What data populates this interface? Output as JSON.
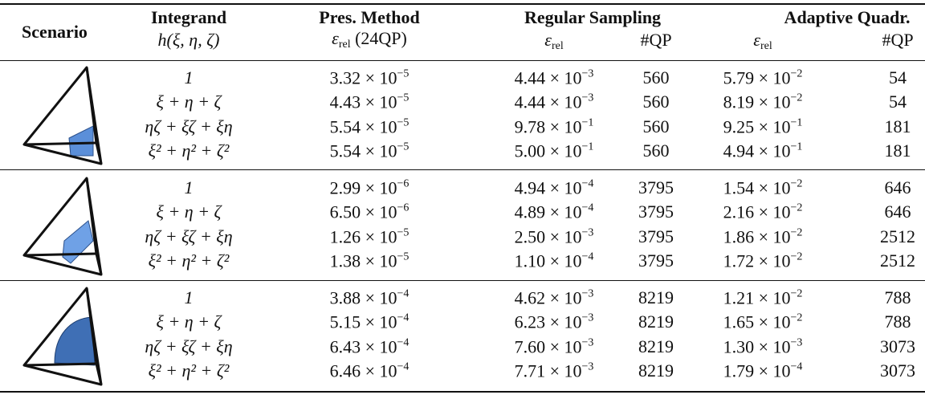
{
  "header": {
    "scenario": "Scenario",
    "integrand": {
      "title": "Integrand",
      "formula": "h(ξ, η, ζ)"
    },
    "pres": {
      "title": "Pres. Method",
      "symbol": "ε",
      "subscript": "rel",
      "note": "(24QP)"
    },
    "regular": {
      "title": "Regular Sampling",
      "symbol": "ε",
      "subscript": "rel",
      "qp": "#QP"
    },
    "adaptive": {
      "title": "Adaptive Quadr.",
      "symbol": "ε",
      "subscript": "rel",
      "qp": "#QP"
    }
  },
  "table": {
    "groups": [
      {
        "rows": [
          [
            "1",
            {
              "mantissa": "3.32 × 10",
              "exponent": "−5"
            },
            {
              "mantissa": "4.44 × 10",
              "exponent": "−3"
            },
            "560",
            {
              "mantissa": "5.79 × 10",
              "exponent": "−2"
            },
            "54"
          ],
          [
            "ξ + η + ζ",
            {
              "mantissa": "4.43 × 10",
              "exponent": "−5"
            },
            {
              "mantissa": "4.44 × 10",
              "exponent": "−3"
            },
            "560",
            {
              "mantissa": "8.19 × 10",
              "exponent": "−2"
            },
            "54"
          ],
          [
            "ηζ + ξζ + ξη",
            {
              "mantissa": "5.54 × 10",
              "exponent": "−5"
            },
            {
              "mantissa": "9.78 × 10",
              "exponent": "−1"
            },
            "560",
            {
              "mantissa": "9.25 × 10",
              "exponent": "−1"
            },
            "181"
          ],
          [
            "ξ² + η² + ζ²",
            {
              "mantissa": "5.54 × 10",
              "exponent": "−5"
            },
            {
              "mantissa": "5.00 × 10",
              "exponent": "−1"
            },
            "560",
            {
              "mantissa": "4.94 × 10",
              "exponent": "−1"
            },
            "181"
          ]
        ]
      },
      {
        "rows": [
          [
            "1",
            {
              "mantissa": "2.99 × 10",
              "exponent": "−6"
            },
            {
              "mantissa": "4.94 × 10",
              "exponent": "−4"
            },
            "3795",
            {
              "mantissa": "1.54 × 10",
              "exponent": "−2"
            },
            "646"
          ],
          [
            "ξ + η + ζ",
            {
              "mantissa": "6.50 × 10",
              "exponent": "−6"
            },
            {
              "mantissa": "4.89 × 10",
              "exponent": "−4"
            },
            "3795",
            {
              "mantissa": "2.16 × 10",
              "exponent": "−2"
            },
            "646"
          ],
          [
            "ηζ + ξζ + ξη",
            {
              "mantissa": "1.26 × 10",
              "exponent": "−5"
            },
            {
              "mantissa": "2.50 × 10",
              "exponent": "−3"
            },
            "3795",
            {
              "mantissa": "1.86 × 10",
              "exponent": "−2"
            },
            "2512"
          ],
          [
            "ξ² + η² + ζ²",
            {
              "mantissa": "1.38 × 10",
              "exponent": "−5"
            },
            {
              "mantissa": "1.10 × 10",
              "exponent": "−4"
            },
            "3795",
            {
              "mantissa": "1.72 × 10",
              "exponent": "−2"
            },
            "2512"
          ]
        ]
      },
      {
        "rows": [
          [
            "1",
            {
              "mantissa": "3.88 × 10",
              "exponent": "−4"
            },
            {
              "mantissa": "4.62 × 10",
              "exponent": "−3"
            },
            "8219",
            {
              "mantissa": "1.21 × 10",
              "exponent": "−2"
            },
            "788"
          ],
          [
            "ξ + η + ζ",
            {
              "mantissa": "5.15 × 10",
              "exponent": "−4"
            },
            {
              "mantissa": "6.23 × 10",
              "exponent": "−3"
            },
            "8219",
            {
              "mantissa": "1.65 × 10",
              "exponent": "−2"
            },
            "788"
          ],
          [
            "ηζ + ξζ + ξη",
            {
              "mantissa": "6.43 × 10",
              "exponent": "−4"
            },
            {
              "mantissa": "7.60 × 10",
              "exponent": "−3"
            },
            "8219",
            {
              "mantissa": "1.30 × 10",
              "exponent": "−3"
            },
            "3073"
          ],
          [
            "ξ² + η² + ζ²",
            {
              "mantissa": "6.46 × 10",
              "exponent": "−4"
            },
            {
              "mantissa": "7.71 × 10",
              "exponent": "−3"
            },
            "8219",
            {
              "mantissa": "1.79 × 10",
              "exponent": "−4"
            },
            "3073"
          ]
        ]
      }
    ]
  }
}
